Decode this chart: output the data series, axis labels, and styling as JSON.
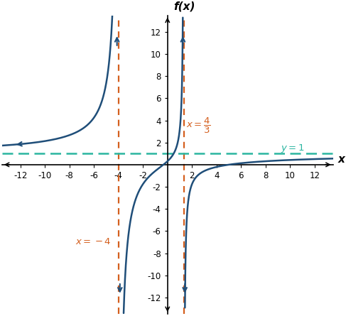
{
  "title": "f(x)",
  "xlabel": "x",
  "xlim": [
    -13.5,
    13.5
  ],
  "ylim": [
    -13.5,
    13.5
  ],
  "xticks": [
    -12,
    -10,
    -8,
    -6,
    -4,
    -2,
    2,
    4,
    6,
    8,
    10,
    12
  ],
  "yticks": [
    -12,
    -10,
    -8,
    -6,
    -4,
    -2,
    2,
    4,
    6,
    8,
    10,
    12
  ],
  "va1": -4.0,
  "va2": 1.3333333333,
  "ha": 1.0,
  "curve_color": "#1f4e79",
  "va_color": "#d45f1e",
  "ha_color": "#2ab5a0",
  "background_color": "#ffffff",
  "tick_fontsize": 8.5
}
